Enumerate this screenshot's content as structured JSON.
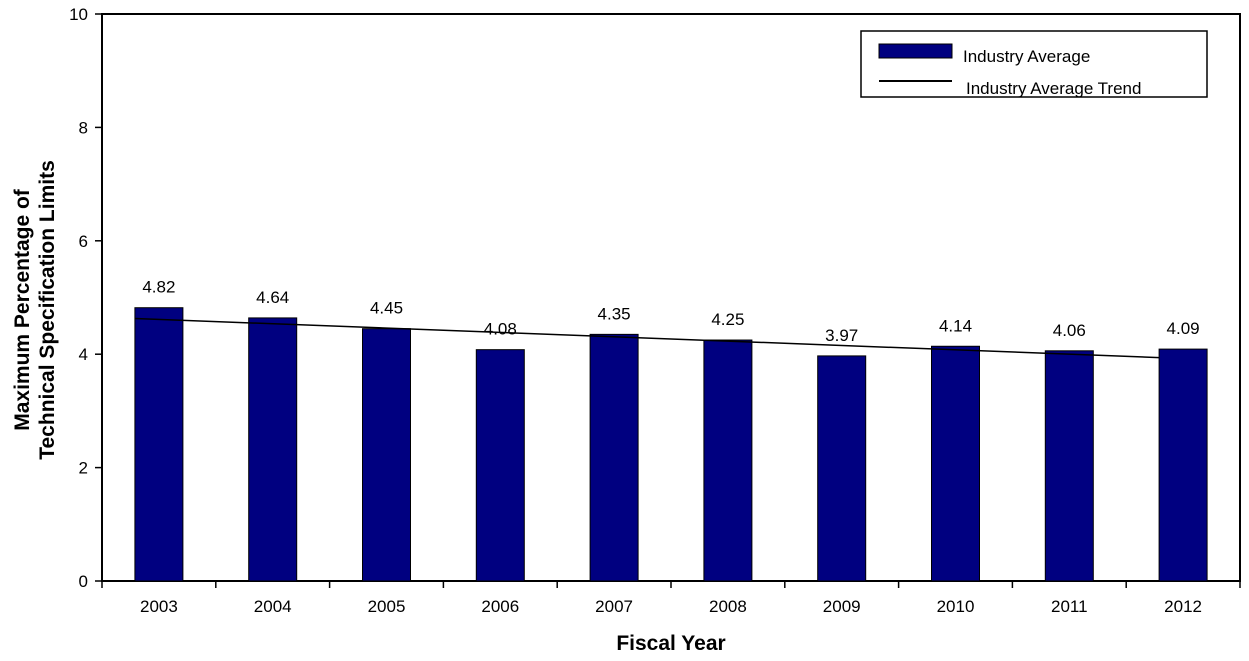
{
  "chart_data": {
    "type": "bar",
    "title": "",
    "xlabel": "Fiscal Year",
    "ylabel_lines": [
      "Maximum Percentage of",
      "Technical Specification Limits"
    ],
    "categories": [
      "2003",
      "2004",
      "2005",
      "2006",
      "2007",
      "2008",
      "2009",
      "2010",
      "2011",
      "2012"
    ],
    "series": [
      {
        "name": "Industry Average",
        "type": "bar",
        "values": [
          4.82,
          4.64,
          4.45,
          4.08,
          4.35,
          4.25,
          3.97,
          4.14,
          4.06,
          4.09
        ],
        "color": "#000080"
      },
      {
        "name": "Industry Average Trend",
        "type": "line",
        "start_value": 4.63,
        "end_value": 3.94,
        "color": "#000000"
      }
    ],
    "data_labels": [
      "4.82",
      "4.64",
      "4.45",
      "4.08",
      "4.35",
      "4.25",
      "3.97",
      "4.14",
      "4.06",
      "4.09"
    ],
    "ylim": [
      0,
      10
    ],
    "yticks": [
      "0",
      "2",
      "4",
      "6",
      "8",
      "10"
    ],
    "grid": false,
    "legend_position": "top-right"
  }
}
